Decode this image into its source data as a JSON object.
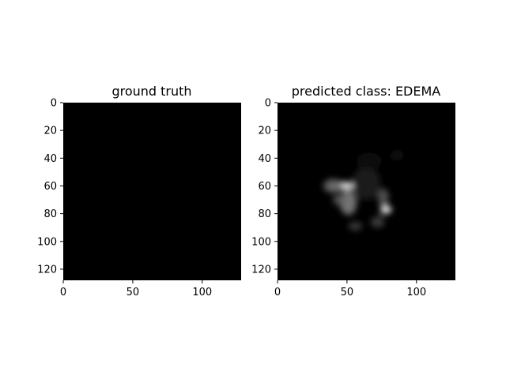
{
  "chart_data": [
    {
      "type": "heatmap",
      "title": "ground truth",
      "xlim": [
        0,
        128
      ],
      "ylim": [
        128,
        0
      ],
      "x_ticks": [
        0,
        50,
        100
      ],
      "y_ticks": [
        0,
        20,
        40,
        60,
        80,
        100,
        120
      ],
      "colormap": "gray",
      "background": "#000000",
      "blobs": []
    },
    {
      "type": "heatmap",
      "title": "predicted class: EDEMA",
      "xlim": [
        0,
        128
      ],
      "ylim": [
        128,
        0
      ],
      "x_ticks": [
        0,
        50,
        100
      ],
      "y_ticks": [
        0,
        20,
        40,
        60,
        80,
        100,
        120
      ],
      "colormap": "gray",
      "background": "#000000",
      "blobs": [
        {
          "x": 47,
          "y": 60,
          "rx": 9,
          "ry": 3,
          "intensity": 0.95
        },
        {
          "x": 40,
          "y": 60,
          "rx": 7,
          "ry": 5,
          "intensity": 0.4
        },
        {
          "x": 51,
          "y": 72,
          "rx": 6,
          "ry": 9,
          "intensity": 0.5
        },
        {
          "x": 44,
          "y": 70,
          "rx": 4,
          "ry": 4,
          "intensity": 0.35
        },
        {
          "x": 78,
          "y": 77,
          "rx": 4,
          "ry": 3,
          "intensity": 1.0
        },
        {
          "x": 76,
          "y": 68,
          "rx": 4,
          "ry": 6,
          "intensity": 0.35
        },
        {
          "x": 72,
          "y": 86,
          "rx": 5,
          "ry": 4,
          "intensity": 0.25
        },
        {
          "x": 56,
          "y": 89,
          "rx": 5,
          "ry": 3,
          "intensity": 0.25
        },
        {
          "x": 64,
          "y": 58,
          "rx": 10,
          "ry": 12,
          "intensity": 0.12
        },
        {
          "x": 66,
          "y": 42,
          "rx": 9,
          "ry": 6,
          "intensity": 0.06
        },
        {
          "x": 86,
          "y": 38,
          "rx": 5,
          "ry": 4,
          "intensity": 0.05
        }
      ]
    }
  ]
}
